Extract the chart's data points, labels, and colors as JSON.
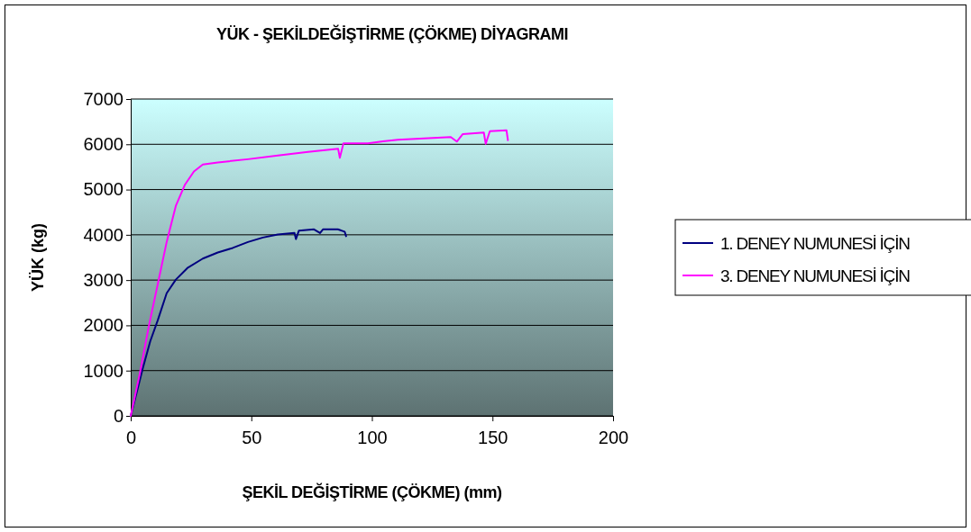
{
  "chart_data": {
    "type": "line",
    "title": "YÜK - ŞEKİLDEĞİŞTİRME (ÇÖKME) DİYAGRAMI",
    "xlabel": "ŞEKİL DEĞİŞTİRME (ÇÖKME) (mm)",
    "ylabel": "YÜK (kg)",
    "xlim": [
      0,
      200
    ],
    "xticks": [
      0,
      50,
      100,
      150,
      200
    ],
    "ylim": [
      0,
      7000
    ],
    "yticks": [
      0,
      1000,
      2000,
      3000,
      4000,
      5000,
      6000,
      7000
    ],
    "grid": "y",
    "legend": "right",
    "marker": "none",
    "line_style": "solid",
    "series": [
      {
        "name": "1. DENEY NUMUNESİ İÇİN",
        "color": "#000080",
        "x": [
          0,
          2.5,
          5,
          8.1,
          11.2,
          14.9,
          18.7,
          23.7,
          29.9,
          36.1,
          42.3,
          48.6,
          54.8,
          61,
          67.9,
          68.5,
          69.7,
          76,
          78.5,
          79.7,
          85.9,
          88.7,
          89.3
        ],
        "values": [
          0,
          520,
          1050,
          1650,
          2110,
          2710,
          3010,
          3275,
          3475,
          3610,
          3710,
          3840,
          3940,
          4005,
          4040,
          3905,
          4090,
          4120,
          4040,
          4120,
          4120,
          4070,
          3970
        ]
      },
      {
        "name": "3. DENEY NUMUNESİ İÇİN",
        "color": "#ff00ff",
        "x": [
          0,
          3.7,
          7.5,
          11.2,
          14.9,
          18.7,
          22.4,
          26.2,
          29.9,
          36.1,
          48.6,
          61,
          73.5,
          86,
          86.7,
          88.2,
          98.4,
          104.6,
          110.8,
          132.7,
          135.2,
          137.7,
          146.4,
          147.2,
          148.9,
          155.8,
          156.4
        ],
        "values": [
          0,
          917,
          1980,
          2910,
          3840,
          4640,
          5100,
          5400,
          5555,
          5600,
          5670,
          5750,
          5830,
          5900,
          5700,
          6020,
          6020,
          6065,
          6100,
          6160,
          6060,
          6225,
          6260,
          6010,
          6290,
          6310,
          6090
        ]
      }
    ]
  }
}
